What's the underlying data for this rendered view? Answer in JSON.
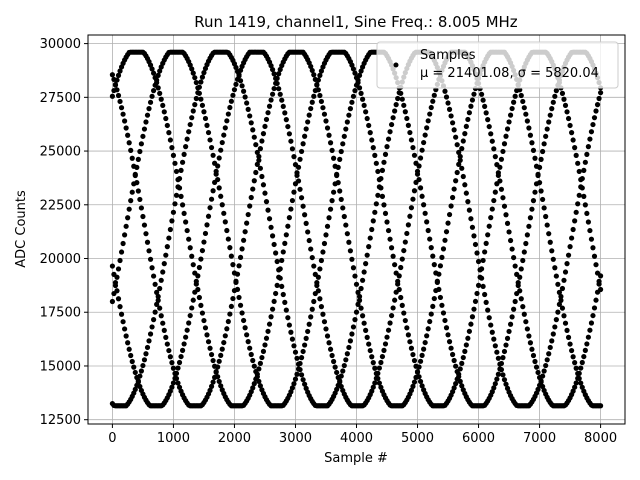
{
  "chart_data": {
    "type": "scatter",
    "title": "Run 1419, channel1, Sine Freq.: 8.005 MHz",
    "xlabel": "Sample #",
    "ylabel": "ADC Counts",
    "xlim": [
      -400,
      8400
    ],
    "ylim": [
      12300,
      30400
    ],
    "xticks": [
      0,
      1000,
      2000,
      3000,
      4000,
      5000,
      6000,
      7000,
      8000
    ],
    "yticks": [
      12500,
      15000,
      17500,
      20000,
      22500,
      25000,
      27500,
      30000
    ],
    "grid": true,
    "legend_position": "top-right",
    "marker_color": "#000000",
    "series": [
      {
        "name": "Samples",
        "stat_label": "μ = 21401.08, σ = 5820.04",
        "baseline": 21401.08,
        "amplitude": 8400,
        "saturation_high": 29600,
        "saturation_low": 13150,
        "period_samples": 3300,
        "phases_at_zero": [
          28550,
          27550,
          19650,
          18000,
          13250
        ],
        "x_start": 0,
        "x_end": 8000
      }
    ]
  }
}
